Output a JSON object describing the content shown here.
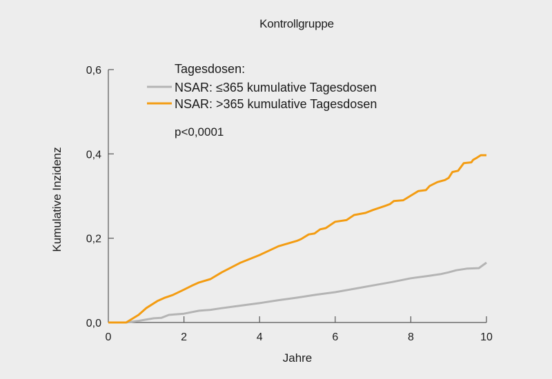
{
  "chart_data": {
    "type": "line",
    "title": "Kontrollgruppe",
    "xlabel": "Jahre",
    "ylabel": "Kumulative Inzidenz",
    "xlim": [
      0,
      10
    ],
    "ylim": [
      0,
      0.6
    ],
    "xticks": [
      0,
      2,
      4,
      6,
      8,
      10
    ],
    "xtick_labels": [
      "0",
      "2",
      "4",
      "6",
      "8",
      "10"
    ],
    "yticks": [
      0,
      0.2,
      0.4,
      0.6
    ],
    "ytick_labels": [
      "0,0",
      "0,2",
      "0,4",
      "0,6"
    ],
    "grid": false,
    "legend_title": "Tagesdosen:",
    "legend_position": "upper-left",
    "annotation": "p<0,0001",
    "series": [
      {
        "name": "NSAR: ≤365 kumulative Tagesdosen",
        "color": "#b4b4b4",
        "x": [
          0,
          0.47,
          0.8,
          1.2,
          1.4,
          1.6,
          2.0,
          2.4,
          2.7,
          3.0,
          3.5,
          4.0,
          4.5,
          5.0,
          5.5,
          6.0,
          6.5,
          7.0,
          7.5,
          8.0,
          8.5,
          8.8,
          9.0,
          9.2,
          9.5,
          9.8,
          10.0
        ],
        "y": [
          0,
          0,
          0.004,
          0.01,
          0.011,
          0.018,
          0.021,
          0.028,
          0.03,
          0.034,
          0.04,
          0.046,
          0.053,
          0.059,
          0.066,
          0.072,
          0.08,
          0.088,
          0.096,
          0.105,
          0.111,
          0.115,
          0.119,
          0.124,
          0.128,
          0.129,
          0.142
        ]
      },
      {
        "name": "NSAR: >365 kumulative Tagesdosen",
        "color": "#f39c12",
        "x": [
          0,
          0.47,
          0.8,
          1.0,
          1.3,
          1.5,
          1.7,
          2.0,
          2.2,
          2.4,
          2.7,
          3.0,
          3.5,
          4.0,
          4.5,
          5.0,
          5.1,
          5.3,
          5.45,
          5.6,
          5.75,
          6.0,
          6.3,
          6.5,
          6.8,
          7.0,
          7.3,
          7.45,
          7.55,
          7.8,
          8.0,
          8.2,
          8.4,
          8.5,
          8.7,
          8.9,
          9.0,
          9.1,
          9.25,
          9.4,
          9.6,
          9.65,
          9.75,
          9.85,
          10.0
        ],
        "y": [
          0,
          0,
          0.018,
          0.034,
          0.051,
          0.059,
          0.065,
          0.078,
          0.087,
          0.095,
          0.103,
          0.119,
          0.142,
          0.16,
          0.181,
          0.194,
          0.198,
          0.209,
          0.211,
          0.221,
          0.224,
          0.239,
          0.243,
          0.255,
          0.26,
          0.267,
          0.276,
          0.281,
          0.288,
          0.29,
          0.301,
          0.312,
          0.314,
          0.324,
          0.333,
          0.338,
          0.343,
          0.357,
          0.36,
          0.378,
          0.38,
          0.386,
          0.391,
          0.397,
          0.397
        ]
      }
    ]
  }
}
